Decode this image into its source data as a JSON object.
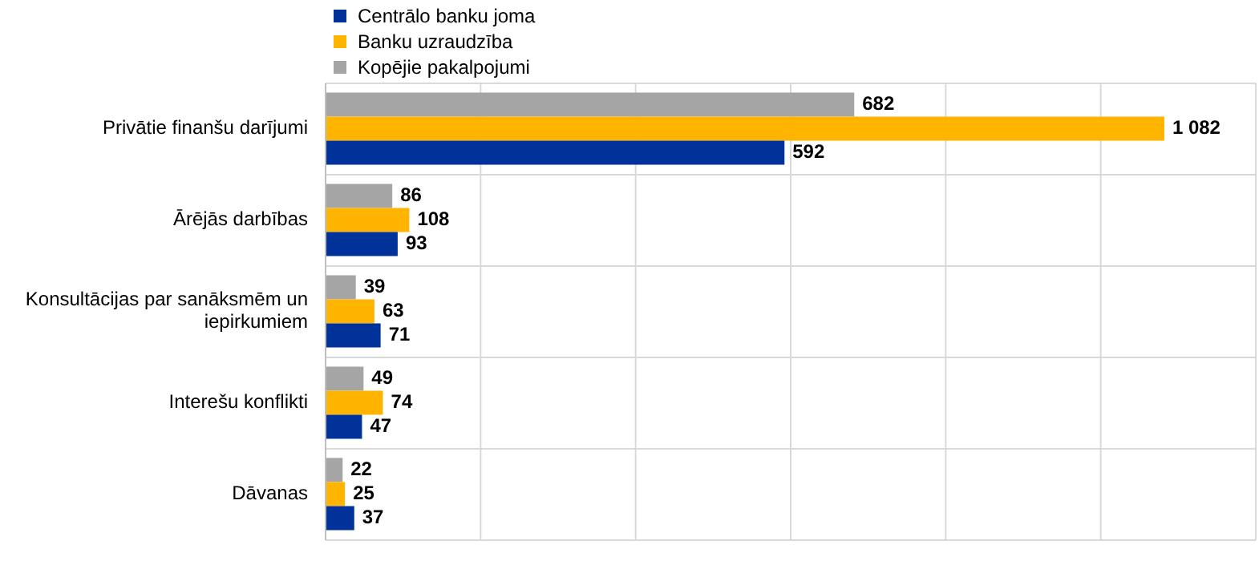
{
  "chart_data": {
    "type": "bar",
    "orientation": "horizontal",
    "categories": [
      "Privātie finanšu darījumi",
      "Ārējās darbības",
      "Konsultācijas par sanāksmēm un iepirkumiem",
      "Interešu konflikti",
      "Dāvanas"
    ],
    "series": [
      {
        "name": "Centrālo banku joma",
        "color": "#003299",
        "values": [
          592,
          93,
          71,
          47,
          37
        ],
        "value_labels": [
          "592",
          "93",
          "71",
          "47",
          "37"
        ]
      },
      {
        "name": "Banku uzraudzība",
        "color": "#ffb400",
        "values": [
          1082,
          108,
          63,
          74,
          25
        ],
        "value_labels": [
          "1 082",
          "108",
          "63",
          "74",
          "25"
        ]
      },
      {
        "name": "Kopējie pakalpojumi",
        "color": "#a5a5a5",
        "values": [
          682,
          86,
          39,
          49,
          22
        ],
        "value_labels": [
          "682",
          "86",
          "39",
          "49",
          "22"
        ]
      }
    ],
    "xlim": [
      0,
      1200
    ],
    "xticks": [
      0,
      200,
      400,
      600,
      800,
      1000,
      1200
    ],
    "tick_labels": "y",
    "grid": true,
    "legend": "top left"
  }
}
